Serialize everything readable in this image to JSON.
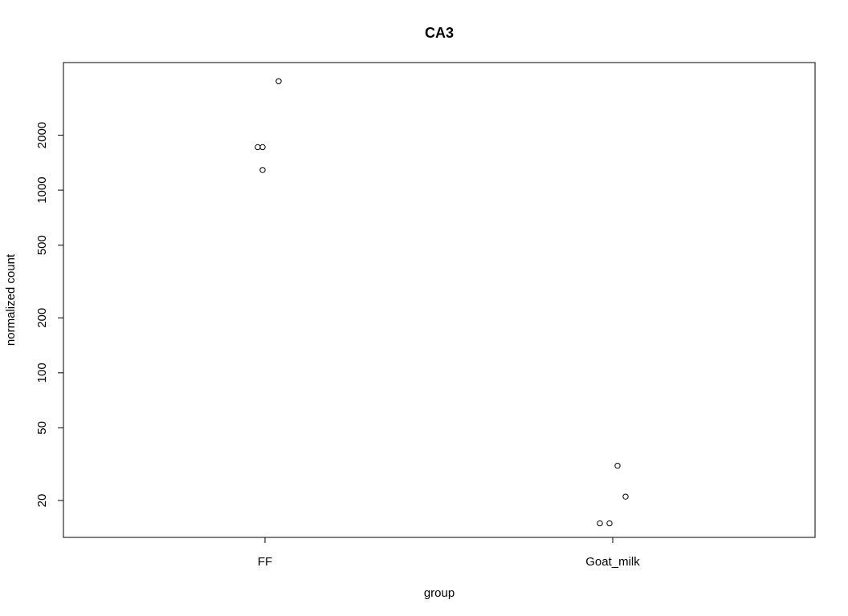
{
  "chart_data": {
    "type": "scatter",
    "title": "CA3",
    "xlabel": "group",
    "ylabel": "normalized count",
    "y_scale": "log",
    "ylim": [
      14,
      5200
    ],
    "y_ticks": [
      20,
      50,
      100,
      200,
      500,
      1000,
      2000
    ],
    "y_tick_labels": [
      "20",
      "50",
      "100",
      "200",
      "500",
      "1000",
      "2000"
    ],
    "categories": [
      "FF",
      "Goat_milk"
    ],
    "points": [
      {
        "group": "FF",
        "y": 3950
      },
      {
        "group": "FF",
        "y": 1720
      },
      {
        "group": "FF",
        "y": 1720
      },
      {
        "group": "FF",
        "y": 1290
      },
      {
        "group": "Goat_milk",
        "y": 31
      },
      {
        "group": "Goat_milk",
        "y": 21
      },
      {
        "group": "Goat_milk",
        "y": 15
      },
      {
        "group": "Goat_milk",
        "y": 15
      }
    ],
    "grid": false,
    "legend": "none"
  }
}
